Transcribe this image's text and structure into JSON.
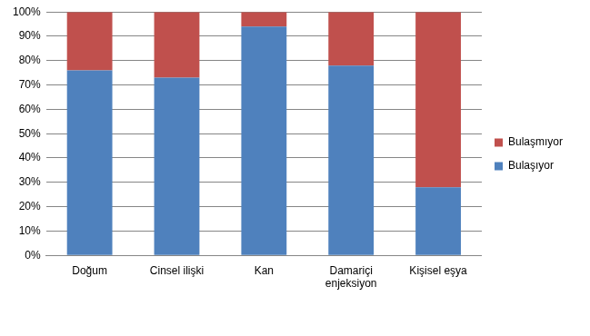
{
  "chart_data": {
    "type": "bar",
    "stacked": true,
    "categories": [
      "Doğum",
      "Cinsel ilişki",
      "Kan",
      "Damariçi enjeksiyon",
      "Kişisel eşya"
    ],
    "series": [
      {
        "name": "Bulaşıyor",
        "color": "#4f81bd",
        "values": [
          76,
          73,
          94,
          78,
          28
        ]
      },
      {
        "name": "Bulaşmıyor",
        "color": "#c0504d",
        "values": [
          24,
          27,
          6,
          22,
          72
        ]
      }
    ],
    "ylim": [
      0,
      100
    ],
    "yticks": [
      {
        "value": 0,
        "label": "0%"
      },
      {
        "value": 10,
        "label": "10%"
      },
      {
        "value": 20,
        "label": "20%"
      },
      {
        "value": 30,
        "label": "30%"
      },
      {
        "value": 40,
        "label": "40%"
      },
      {
        "value": 50,
        "label": "50%"
      },
      {
        "value": 60,
        "label": "60%"
      },
      {
        "value": 70,
        "label": "70%"
      },
      {
        "value": 80,
        "label": "80%"
      },
      {
        "value": 90,
        "label": "90%"
      },
      {
        "value": 100,
        "label": "100%"
      }
    ],
    "grid": true,
    "legend": "right"
  }
}
